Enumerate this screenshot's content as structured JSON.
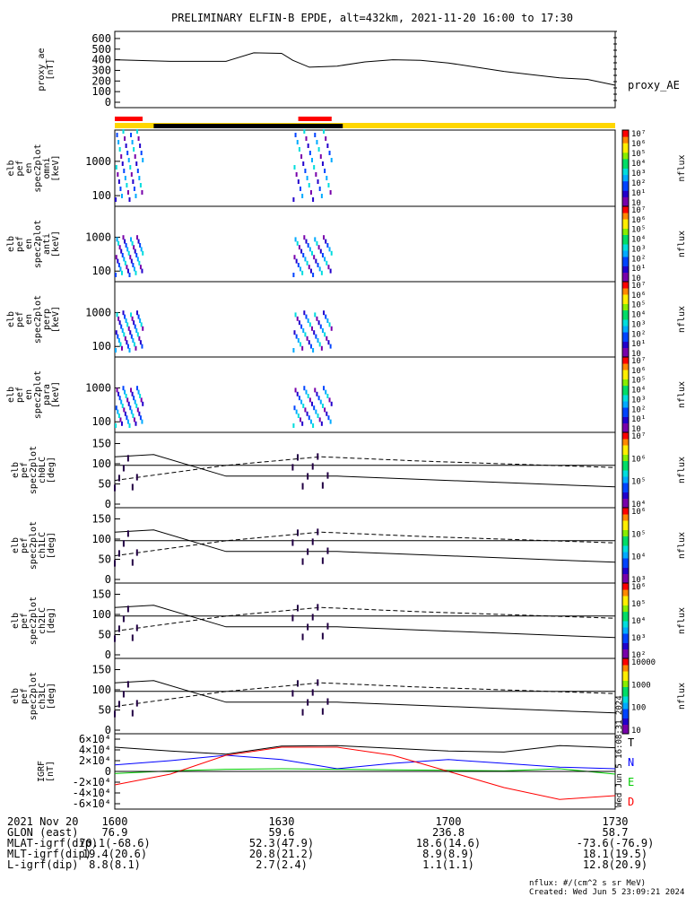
{
  "title": "PRELIMINARY ELFIN-B EPDE, alt=432km, 2021-11-20 16:00 to 17:30",
  "panels": [
    {
      "id": "ae",
      "ylabel": [
        "proxy_ae",
        "[nT]"
      ],
      "side_label": "proxy_AE",
      "ticks": [
        "0",
        "100",
        "200",
        "300",
        "400",
        "500",
        "600"
      ],
      "ylim": [
        0,
        650
      ]
    },
    {
      "id": "omni",
      "ylabel": [
        "elb",
        "pef",
        "en",
        "spec2plot",
        "omni",
        "[keV]"
      ],
      "ticks": [
        "100",
        "1000"
      ],
      "cbar": [
        "10",
        "10¹",
        "10²",
        "10³",
        "10⁴",
        "10⁵",
        "10⁶",
        "10⁷"
      ],
      "cbar_label": "nflux"
    },
    {
      "id": "anti",
      "ylabel": [
        "elb",
        "pef",
        "en",
        "spec2plot",
        "anti",
        "[keV]"
      ],
      "ticks": [
        "100",
        "1000"
      ],
      "cbar": [
        "10",
        "10¹",
        "10²",
        "10³",
        "10⁴",
        "10⁵",
        "10⁶",
        "10⁷"
      ],
      "cbar_label": "nflux"
    },
    {
      "id": "perp",
      "ylabel": [
        "elb",
        "pef",
        "en",
        "spec2plot",
        "perp",
        "[keV]"
      ],
      "ticks": [
        "100",
        "1000"
      ],
      "cbar": [
        "10",
        "10¹",
        "10²",
        "10³",
        "10⁴",
        "10⁵",
        "10⁶",
        "10⁷"
      ],
      "cbar_label": "nflux"
    },
    {
      "id": "para",
      "ylabel": [
        "elb",
        "pef",
        "en",
        "spec2plot",
        "para",
        "[keV]"
      ],
      "ticks": [
        "100",
        "1000"
      ],
      "cbar": [
        "10",
        "10¹",
        "10²",
        "10³",
        "10⁴",
        "10⁵",
        "10⁶",
        "10⁷"
      ],
      "cbar_label": "nflux"
    },
    {
      "id": "ch0",
      "ylabel": [
        "elb",
        "pef",
        "spec2plot",
        "ch0LC",
        "[deg]"
      ],
      "ticks": [
        "0",
        "50",
        "100",
        "150"
      ],
      "cbar": [
        "10⁴",
        "10⁵",
        "10⁶",
        "10⁷"
      ],
      "cbar_label": "nflux"
    },
    {
      "id": "ch1",
      "ylabel": [
        "elb",
        "pef",
        "spec2plot",
        "ch1LC",
        "[deg]"
      ],
      "ticks": [
        "0",
        "50",
        "100",
        "150"
      ],
      "cbar": [
        "10³",
        "10⁴",
        "10⁵",
        "10⁶"
      ],
      "cbar_label": "nflux"
    },
    {
      "id": "ch2",
      "ylabel": [
        "elb",
        "pef",
        "spec2plot",
        "ch2LC",
        "[deg]"
      ],
      "ticks": [
        "0",
        "50",
        "100",
        "150"
      ],
      "cbar": [
        "10²",
        "10³",
        "10⁴",
        "10⁵",
        "10⁶"
      ],
      "cbar_label": "nflux"
    },
    {
      "id": "ch3",
      "ylabel": [
        "elb",
        "pef",
        "spec2plot",
        "ch3LC",
        "[deg]"
      ],
      "ticks": [
        "0",
        "50",
        "100",
        "150"
      ],
      "cbar": [
        "10",
        "100",
        "1000",
        "10000"
      ],
      "cbar_label": "nflux"
    },
    {
      "id": "igrf",
      "ylabel": [
        "IGRF",
        "[nT]"
      ],
      "ticks": [
        "-6×10⁴",
        "-4×10⁴",
        "-2×10⁴",
        "0",
        "2×10⁴",
        "4×10⁴",
        "6×10⁴"
      ],
      "legend": [
        "T",
        "N",
        "E",
        "D"
      ]
    }
  ],
  "chart_data": {
    "type": "line",
    "x_ticks": [
      "1600",
      "1630",
      "1700",
      "1730"
    ],
    "proxy_ae": {
      "x_min": [
        0,
        10,
        20,
        25,
        30,
        32,
        35,
        40,
        45,
        50,
        55,
        60,
        65,
        70,
        75,
        80,
        85,
        90
      ],
      "values": [
        400,
        385,
        385,
        465,
        460,
        395,
        330,
        340,
        380,
        400,
        395,
        370,
        330,
        290,
        260,
        230,
        215,
        160
      ]
    },
    "igrf": {
      "colors": {
        "T": "#000000",
        "N": "#0000ff",
        "E": "#00cc00",
        "D": "#ff0000"
      },
      "x_min": [
        0,
        10,
        20,
        30,
        40,
        50,
        60,
        70,
        80,
        90
      ],
      "T": [
        45000,
        38000,
        32000,
        47000,
        48000,
        43000,
        38000,
        36000,
        48000,
        44000
      ],
      "N": [
        12000,
        20000,
        30000,
        22000,
        5000,
        15000,
        22000,
        15000,
        8000,
        5000
      ],
      "E": [
        -4000,
        1000,
        4000,
        5000,
        4000,
        3000,
        2000,
        1000,
        5000,
        -5000
      ],
      "D": [
        -25000,
        -5000,
        30000,
        45000,
        45000,
        30000,
        0,
        -30000,
        -52000,
        -45000
      ]
    }
  },
  "state_bar": {
    "red_segments": [
      [
        0,
        5
      ],
      [
        33,
        39
      ]
    ],
    "black_segment": [
      7,
      41
    ],
    "yellow": [
      41,
      90
    ]
  },
  "footer": {
    "rows": [
      [
        "2021 Nov 20",
        "1600",
        "1630",
        "1700",
        "1730"
      ],
      [
        "GLON (east)",
        "76.9",
        "59.6",
        "236.8",
        "58.7"
      ],
      [
        "MLAT-igrf(dip)",
        "70.1(-68.6)",
        "52.3(47.9)",
        "18.6(14.6)",
        "-73.6(-76.9)"
      ],
      [
        "MLT-igrf(dip)",
        "19.4(20.6)",
        "20.8(21.2)",
        "8.9(8.9)",
        "18.1(19.5)"
      ],
      [
        "L-igrf(dip)",
        "8.8(8.1)",
        "2.7(2.4)",
        "1.1(1.1)",
        "12.8(20.9)"
      ]
    ],
    "note1": "nflux: #/(cm^2 s sr MeV)",
    "note2": "Created: Wed Jun  5 23:09:21 2024",
    "vertical_stamp": "Wed Jun  5 16:08:31 2024"
  }
}
